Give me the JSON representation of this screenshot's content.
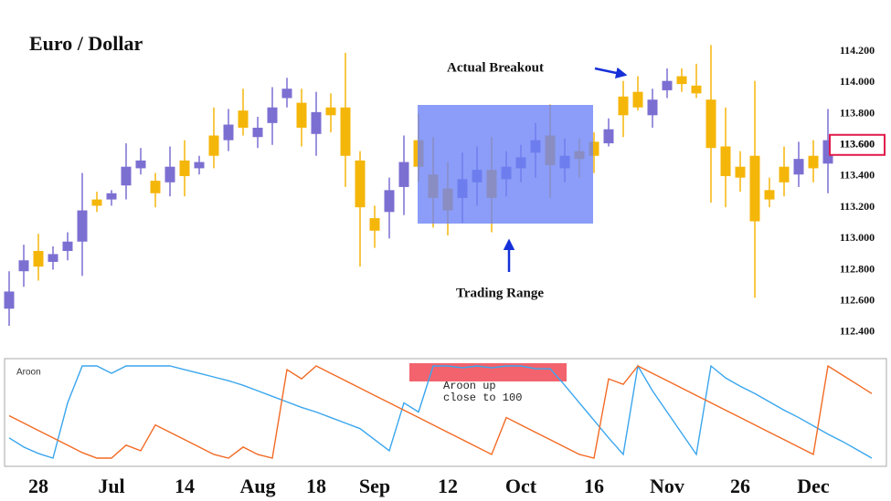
{
  "chart_data": [
    {
      "type": "candlestick",
      "title": "Euro / Dollar",
      "categories": [
        null,
        null,
        "28",
        null,
        null,
        null,
        null,
        "Jul",
        null,
        null,
        null,
        null,
        "14",
        null,
        null,
        null,
        null,
        "Aug",
        null,
        null,
        null,
        "18",
        null,
        null,
        null,
        "Sep",
        null,
        null,
        null,
        null,
        "12",
        null,
        null,
        null,
        null,
        "Oct",
        null,
        null,
        null,
        null,
        "16",
        null,
        null,
        null,
        null,
        "Nov",
        null,
        null,
        null,
        null,
        "26",
        null,
        null,
        null,
        null,
        "Dec",
        null
      ],
      "open": [
        112.55,
        112.79,
        112.92,
        112.85,
        112.92,
        112.98,
        113.25,
        113.25,
        113.34,
        113.45,
        113.37,
        113.36,
        113.5,
        113.45,
        113.66,
        113.63,
        113.82,
        113.65,
        113.74,
        113.9,
        113.87,
        113.67,
        113.84,
        113.84,
        113.5,
        113.13,
        113.17,
        113.33,
        113.63,
        113.41,
        113.32,
        113.26,
        113.36,
        113.44,
        113.38,
        113.45,
        113.55,
        113.66,
        113.45,
        113.56,
        113.62,
        113.61,
        113.91,
        113.94,
        113.79,
        113.95,
        114.04,
        113.98,
        113.89,
        113.59,
        113.46,
        113.53,
        113.31,
        113.46,
        113.41,
        113.53,
        113.48
      ],
      "high": [
        112.79,
        112.96,
        113.03,
        112.95,
        113.04,
        113.42,
        113.3,
        113.31,
        113.61,
        113.58,
        113.42,
        113.59,
        113.63,
        113.53,
        113.84,
        113.83,
        113.96,
        113.78,
        113.97,
        114.03,
        113.96,
        113.94,
        113.93,
        114.19,
        113.56,
        113.21,
        113.39,
        113.66,
        113.8,
        113.65,
        113.49,
        113.55,
        113.59,
        113.65,
        113.56,
        113.6,
        113.74,
        113.86,
        113.64,
        113.64,
        113.68,
        113.77,
        114.01,
        114.04,
        113.96,
        114.09,
        114.09,
        114.12,
        114.24,
        113.84,
        113.56,
        114.01,
        113.39,
        113.59,
        113.62,
        113.63,
        113.83
      ],
      "low": [
        112.44,
        112.69,
        112.73,
        112.8,
        112.86,
        112.76,
        113.17,
        113.21,
        113.25,
        113.41,
        113.2,
        113.27,
        113.27,
        113.41,
        113.45,
        113.56,
        113.66,
        113.58,
        113.6,
        113.84,
        113.59,
        113.53,
        113.68,
        113.33,
        112.82,
        112.94,
        113.0,
        113.15,
        113.36,
        113.07,
        113.02,
        113.1,
        113.21,
        113.04,
        113.27,
        113.36,
        113.39,
        113.26,
        113.36,
        113.39,
        113.42,
        113.59,
        113.65,
        113.82,
        113.71,
        113.9,
        113.94,
        113.9,
        113.23,
        113.2,
        113.3,
        112.62,
        113.2,
        113.27,
        113.33,
        113.36,
        113.29
      ],
      "close": [
        112.66,
        112.86,
        112.82,
        112.9,
        112.98,
        113.18,
        113.21,
        113.29,
        113.46,
        113.5,
        113.29,
        113.46,
        113.4,
        113.49,
        113.53,
        113.73,
        113.71,
        113.71,
        113.84,
        113.96,
        113.71,
        113.81,
        113.79,
        113.53,
        113.2,
        113.05,
        113.31,
        113.49,
        113.46,
        113.26,
        113.18,
        113.38,
        113.44,
        113.26,
        113.46,
        113.52,
        113.63,
        113.47,
        113.53,
        113.51,
        113.53,
        113.7,
        113.79,
        113.84,
        113.89,
        114.01,
        113.99,
        113.93,
        113.58,
        113.4,
        113.39,
        113.11,
        113.25,
        113.36,
        113.51,
        113.45,
        113.63
      ],
      "up_color": "#7b6fd2",
      "down_color": "#f5b60a",
      "ylim": [
        112.3,
        114.4
      ],
      "yticks": [
        {
          "value": 112.4,
          "label": "112.400"
        },
        {
          "value": 112.6,
          "label": "112.600"
        },
        {
          "value": 112.8,
          "label": "112.800"
        },
        {
          "value": 113.0,
          "label": "113.000"
        },
        {
          "value": 113.2,
          "label": "113.200"
        },
        {
          "value": 113.4,
          "label": "113.400"
        },
        {
          "value": 113.6,
          "label": "113.600"
        },
        {
          "value": 113.8,
          "label": "113.800"
        },
        {
          "value": 114.0,
          "label": "114.000"
        },
        {
          "value": 114.2,
          "label": "114.200"
        }
      ],
      "last_price": {
        "value": 113.6,
        "label": "113.600"
      },
      "annotations": [
        "Actual Breakout",
        "Trading Range"
      ]
    },
    {
      "type": "line",
      "label": "Aroon",
      "ylim": [
        0,
        100
      ],
      "note": [
        "Aroon up",
        "close to 100"
      ],
      "series": [
        {
          "color": "#3aa6ee",
          "values": [
            22,
            12,
            5,
            0,
            60,
            100,
            100,
            92,
            100,
            100,
            100,
            100,
            96,
            92,
            88,
            84,
            79,
            73,
            67,
            61,
            55,
            50,
            44,
            38,
            32,
            20,
            8,
            60,
            50,
            100,
            100,
            98,
            100,
            98,
            100,
            100,
            97,
            97,
            79,
            60,
            41,
            22,
            4,
            100,
            73,
            50,
            27,
            4,
            100,
            87,
            78,
            70,
            61,
            52,
            44,
            35,
            26,
            18,
            9,
            0
          ]
        },
        {
          "color": "#f26a24",
          "values": [
            46,
            38,
            30,
            22,
            14,
            6,
            0,
            0,
            14,
            8,
            36,
            28,
            20,
            12,
            4,
            0,
            12,
            4,
            0,
            96,
            86,
            100,
            92,
            84,
            76,
            68,
            60,
            52,
            44,
            36,
            28,
            20,
            12,
            4,
            44,
            36,
            28,
            20,
            12,
            4,
            0,
            86,
            80,
            100,
            92,
            84,
            76,
            68,
            60,
            52,
            44,
            36,
            28,
            20,
            12,
            4,
            100,
            90,
            80,
            70
          ]
        }
      ]
    }
  ]
}
